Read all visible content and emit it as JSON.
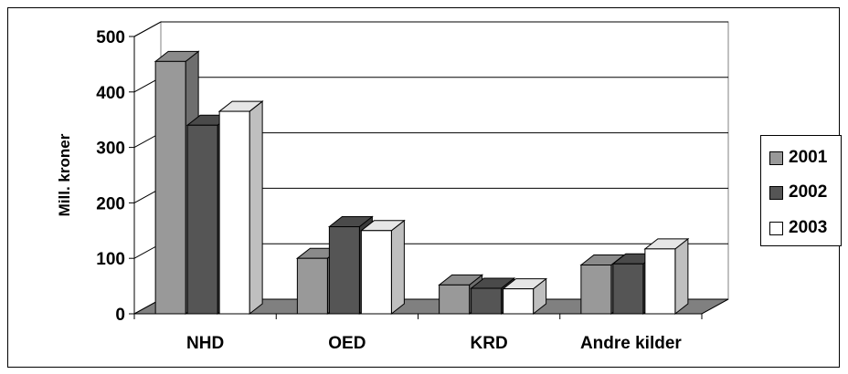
{
  "chart_data": {
    "type": "bar",
    "categories": [
      "NHD",
      "OED",
      "KRD",
      "Andre kilder"
    ],
    "series": [
      {
        "name": "2001",
        "values": [
          455,
          100,
          52,
          88
        ],
        "color": "#999999"
      },
      {
        "name": "2002",
        "values": [
          340,
          157,
          46,
          90
        ],
        "color": "#555555"
      },
      {
        "name": "2003",
        "values": [
          365,
          150,
          45,
          117
        ],
        "color": "#ffffff"
      }
    ],
    "title": "",
    "xlabel": "",
    "ylabel": "Mill. kroner",
    "ylim": [
      0,
      500
    ],
    "yticks": [
      "0",
      "100",
      "200",
      "300",
      "400",
      "500"
    ],
    "grid": true,
    "legend_position": "right",
    "style": "3d-clustered-column"
  }
}
